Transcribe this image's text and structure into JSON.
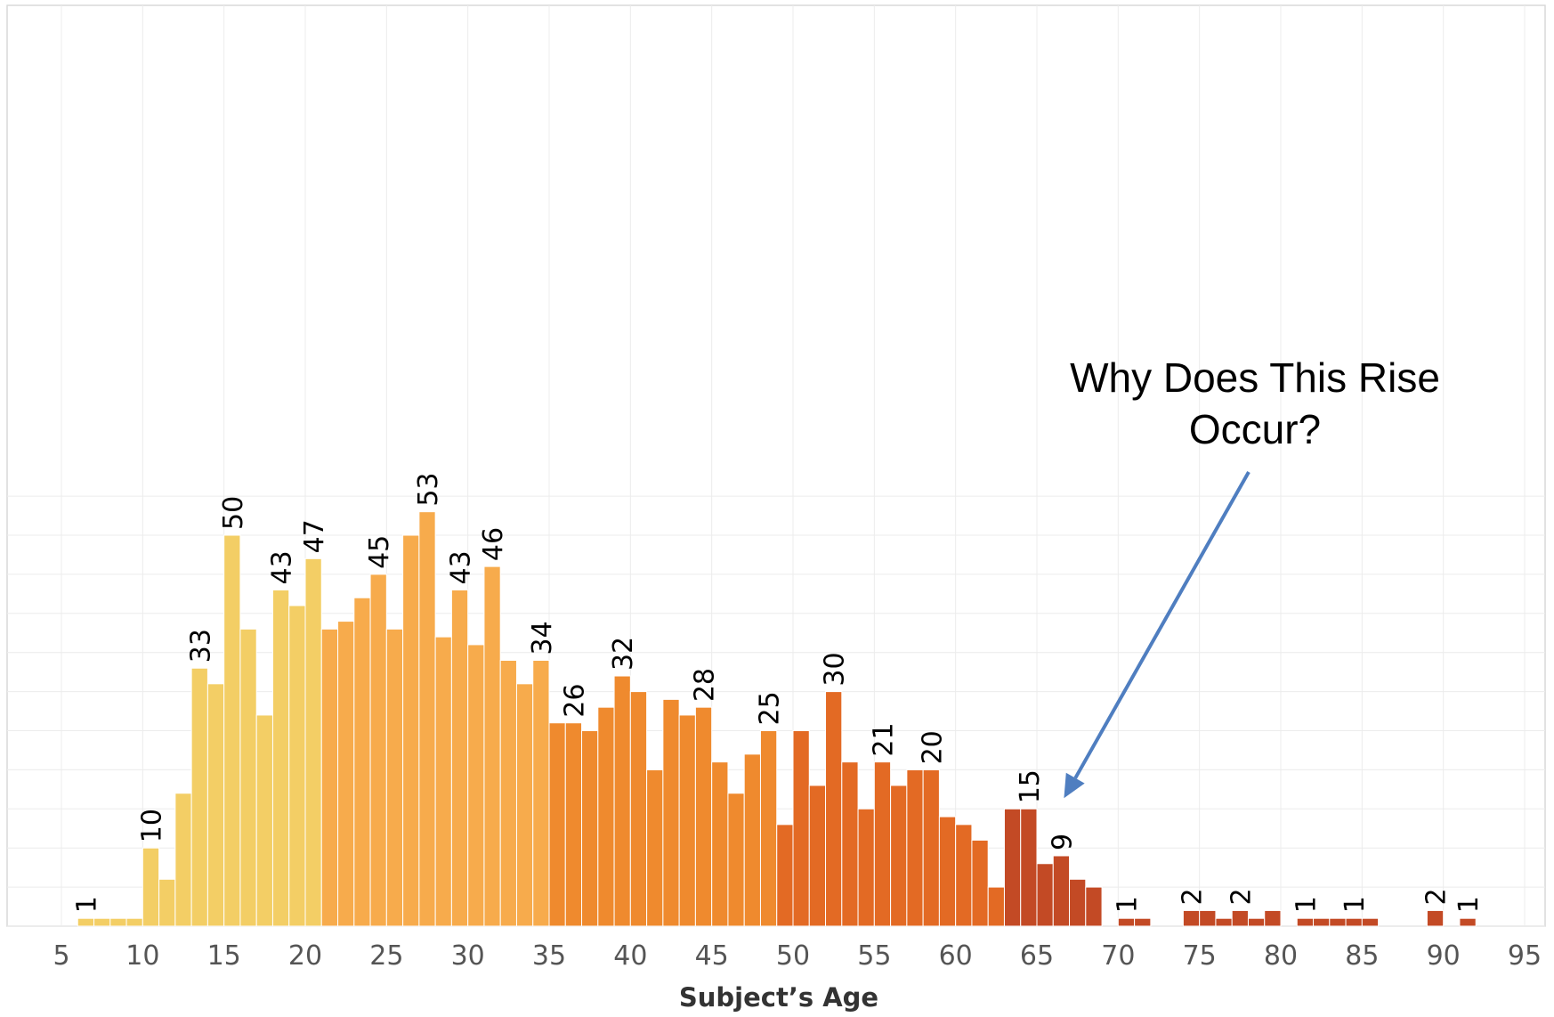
{
  "chart_data": {
    "type": "bar",
    "xlabel": "Subject’s Age",
    "ylabel": "",
    "xlim": [
      5,
      95
    ],
    "ylim": [
      0,
      59
    ],
    "x_ticks": [
      5,
      10,
      15,
      20,
      25,
      30,
      35,
      40,
      45,
      50,
      55,
      60,
      65,
      70,
      75,
      80,
      85,
      90,
      95
    ],
    "grid": true,
    "colors": {
      "bin_5_20": "#F3CE65",
      "bin_21_34": "#F7AB4C",
      "bin_35_48": "#EF8A2E",
      "bin_49_62": "#E36A24",
      "bin_63_92": "#C34A25",
      "arrow": "#4F7EC0"
    },
    "bars": [
      {
        "age": 6,
        "count": 1
      },
      {
        "age": 7,
        "count": 1
      },
      {
        "age": 8,
        "count": 1
      },
      {
        "age": 9,
        "count": 1
      },
      {
        "age": 10,
        "count": 10
      },
      {
        "age": 11,
        "count": 6
      },
      {
        "age": 12,
        "count": 17
      },
      {
        "age": 13,
        "count": 33
      },
      {
        "age": 14,
        "count": 31
      },
      {
        "age": 15,
        "count": 50
      },
      {
        "age": 16,
        "count": 38
      },
      {
        "age": 17,
        "count": 27
      },
      {
        "age": 18,
        "count": 43
      },
      {
        "age": 19,
        "count": 41
      },
      {
        "age": 20,
        "count": 47
      },
      {
        "age": 21,
        "count": 38
      },
      {
        "age": 22,
        "count": 39
      },
      {
        "age": 23,
        "count": 42
      },
      {
        "age": 24,
        "count": 45
      },
      {
        "age": 25,
        "count": 38
      },
      {
        "age": 26,
        "count": 50
      },
      {
        "age": 27,
        "count": 53
      },
      {
        "age": 28,
        "count": 37
      },
      {
        "age": 29,
        "count": 43
      },
      {
        "age": 30,
        "count": 36
      },
      {
        "age": 31,
        "count": 46
      },
      {
        "age": 32,
        "count": 34
      },
      {
        "age": 33,
        "count": 31
      },
      {
        "age": 34,
        "count": 34
      },
      {
        "age": 35,
        "count": 26
      },
      {
        "age": 36,
        "count": 26
      },
      {
        "age": 37,
        "count": 25
      },
      {
        "age": 38,
        "count": 28
      },
      {
        "age": 39,
        "count": 32
      },
      {
        "age": 40,
        "count": 30
      },
      {
        "age": 41,
        "count": 20
      },
      {
        "age": 42,
        "count": 29
      },
      {
        "age": 43,
        "count": 27
      },
      {
        "age": 44,
        "count": 28
      },
      {
        "age": 45,
        "count": 21
      },
      {
        "age": 46,
        "count": 17
      },
      {
        "age": 47,
        "count": 22
      },
      {
        "age": 48,
        "count": 25
      },
      {
        "age": 49,
        "count": 13
      },
      {
        "age": 50,
        "count": 25
      },
      {
        "age": 51,
        "count": 18
      },
      {
        "age": 52,
        "count": 30
      },
      {
        "age": 53,
        "count": 21
      },
      {
        "age": 54,
        "count": 15
      },
      {
        "age": 55,
        "count": 21
      },
      {
        "age": 56,
        "count": 18
      },
      {
        "age": 57,
        "count": 20
      },
      {
        "age": 58,
        "count": 20
      },
      {
        "age": 59,
        "count": 14
      },
      {
        "age": 60,
        "count": 13
      },
      {
        "age": 61,
        "count": 11
      },
      {
        "age": 62,
        "count": 5
      },
      {
        "age": 63,
        "count": 15
      },
      {
        "age": 64,
        "count": 15
      },
      {
        "age": 65,
        "count": 8
      },
      {
        "age": 66,
        "count": 9
      },
      {
        "age": 67,
        "count": 6
      },
      {
        "age": 68,
        "count": 5
      },
      {
        "age": 70,
        "count": 1
      },
      {
        "age": 71,
        "count": 1
      },
      {
        "age": 74,
        "count": 2
      },
      {
        "age": 75,
        "count": 2
      },
      {
        "age": 76,
        "count": 1
      },
      {
        "age": 77,
        "count": 2
      },
      {
        "age": 78,
        "count": 1
      },
      {
        "age": 79,
        "count": 2
      },
      {
        "age": 81,
        "count": 1
      },
      {
        "age": 82,
        "count": 1
      },
      {
        "age": 83,
        "count": 1
      },
      {
        "age": 84,
        "count": 1
      },
      {
        "age": 85,
        "count": 1
      },
      {
        "age": 89,
        "count": 2
      },
      {
        "age": 91,
        "count": 1
      }
    ],
    "labeled_ages": [
      6,
      10,
      13,
      15,
      18,
      20,
      24,
      27,
      29,
      31,
      34,
      36,
      39,
      44,
      48,
      52,
      55,
      58,
      64,
      66,
      70,
      74,
      77,
      81,
      84,
      89,
      91
    ],
    "annotation": {
      "lines": [
        "Why Does This Rise",
        "Occur?"
      ],
      "points_to_age": 66
    }
  }
}
